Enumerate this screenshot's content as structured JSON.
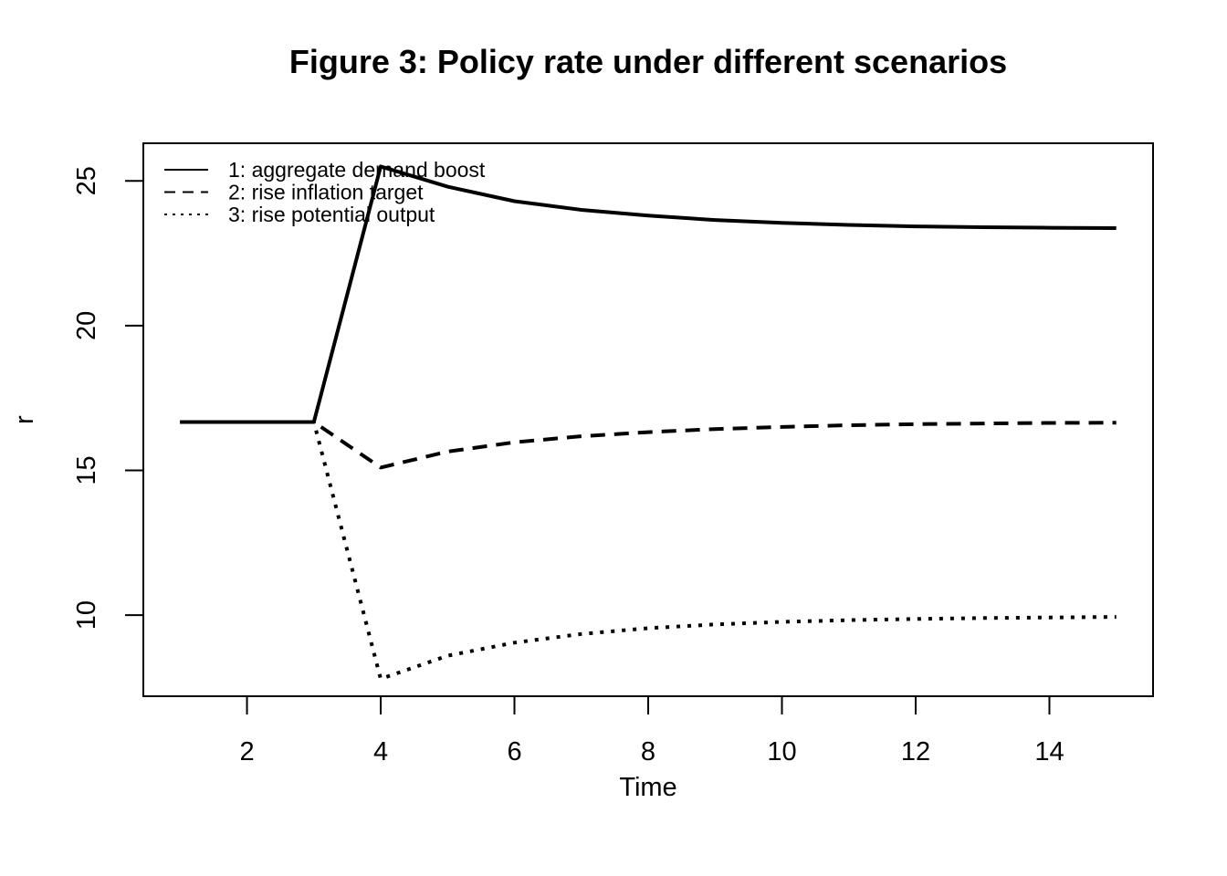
{
  "chart_data": {
    "type": "line",
    "title": "Figure 3: Policy rate under different scenarios",
    "xlabel": "Time",
    "ylabel": "r",
    "xlim": [
      0.45,
      15.55
    ],
    "ylim": [
      7.2,
      26.3
    ],
    "x_ticks": [
      2,
      4,
      6,
      8,
      10,
      12,
      14
    ],
    "y_ticks": [
      10,
      15,
      20,
      25
    ],
    "grid": false,
    "legend_position": "top-left",
    "x": [
      1,
      2,
      3,
      4,
      5,
      6,
      7,
      8,
      9,
      10,
      11,
      12,
      13,
      14,
      15
    ],
    "series": [
      {
        "name": "1: aggregate demand boost",
        "line_style": "solid",
        "color": "#000000",
        "values": [
          16.67,
          16.67,
          16.67,
          25.5,
          24.8,
          24.3,
          24.0,
          23.8,
          23.65,
          23.55,
          23.48,
          23.43,
          23.4,
          23.38,
          23.37
        ]
      },
      {
        "name": "2: rise inflation target",
        "line_style": "dashed",
        "color": "#000000",
        "values": [
          16.67,
          16.67,
          16.67,
          15.1,
          15.65,
          15.97,
          16.18,
          16.32,
          16.43,
          16.5,
          16.56,
          16.6,
          16.62,
          16.64,
          16.65
        ]
      },
      {
        "name": "3: rise potential output",
        "line_style": "dotted",
        "color": "#000000",
        "values": [
          16.67,
          16.67,
          16.67,
          7.8,
          8.6,
          9.05,
          9.35,
          9.55,
          9.68,
          9.77,
          9.83,
          9.87,
          9.9,
          9.92,
          9.94
        ]
      }
    ]
  }
}
